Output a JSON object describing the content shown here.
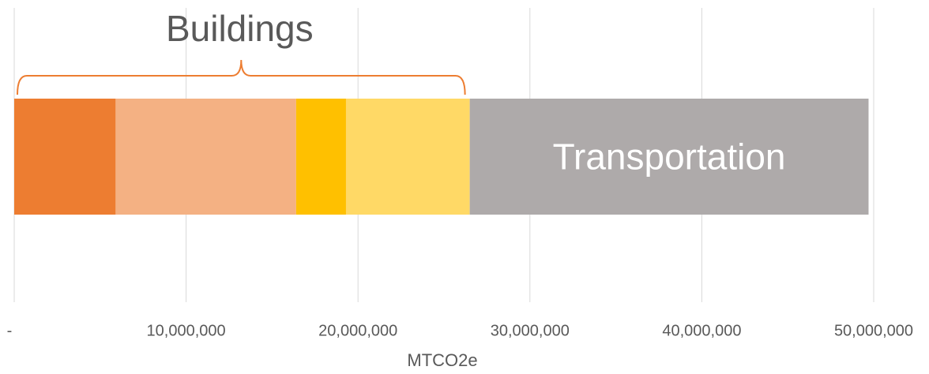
{
  "chart_data": {
    "type": "stacked-bar-horizontal",
    "categories": [
      null
    ],
    "series": [
      {
        "color": "#ed7d31",
        "values": [
          5900000
        ]
      },
      {
        "color": "#f4b183",
        "values": [
          10500000
        ]
      },
      {
        "color": "#ffc000",
        "values": [
          2900000
        ]
      },
      {
        "color": "#ffd966",
        "values": [
          7200000
        ]
      },
      {
        "name": "Transportation",
        "color": "#aeaaaa",
        "values": [
          23200000
        ]
      }
    ],
    "annotations": [
      "Buildings"
    ],
    "x_label": "MTCO2e",
    "xlim": [
      0,
      50000000
    ],
    "xticks": [
      {
        "value": 0,
        "label": "-"
      },
      {
        "value": 10000000,
        "label": "10,000,000"
      },
      {
        "value": 20000000,
        "label": "20,000,000"
      },
      {
        "value": 30000000,
        "label": "30,000,000"
      },
      {
        "value": 40000000,
        "label": "40,000,000"
      },
      {
        "value": 50000000,
        "label": "50,000,000"
      }
    ],
    "grid": true
  }
}
